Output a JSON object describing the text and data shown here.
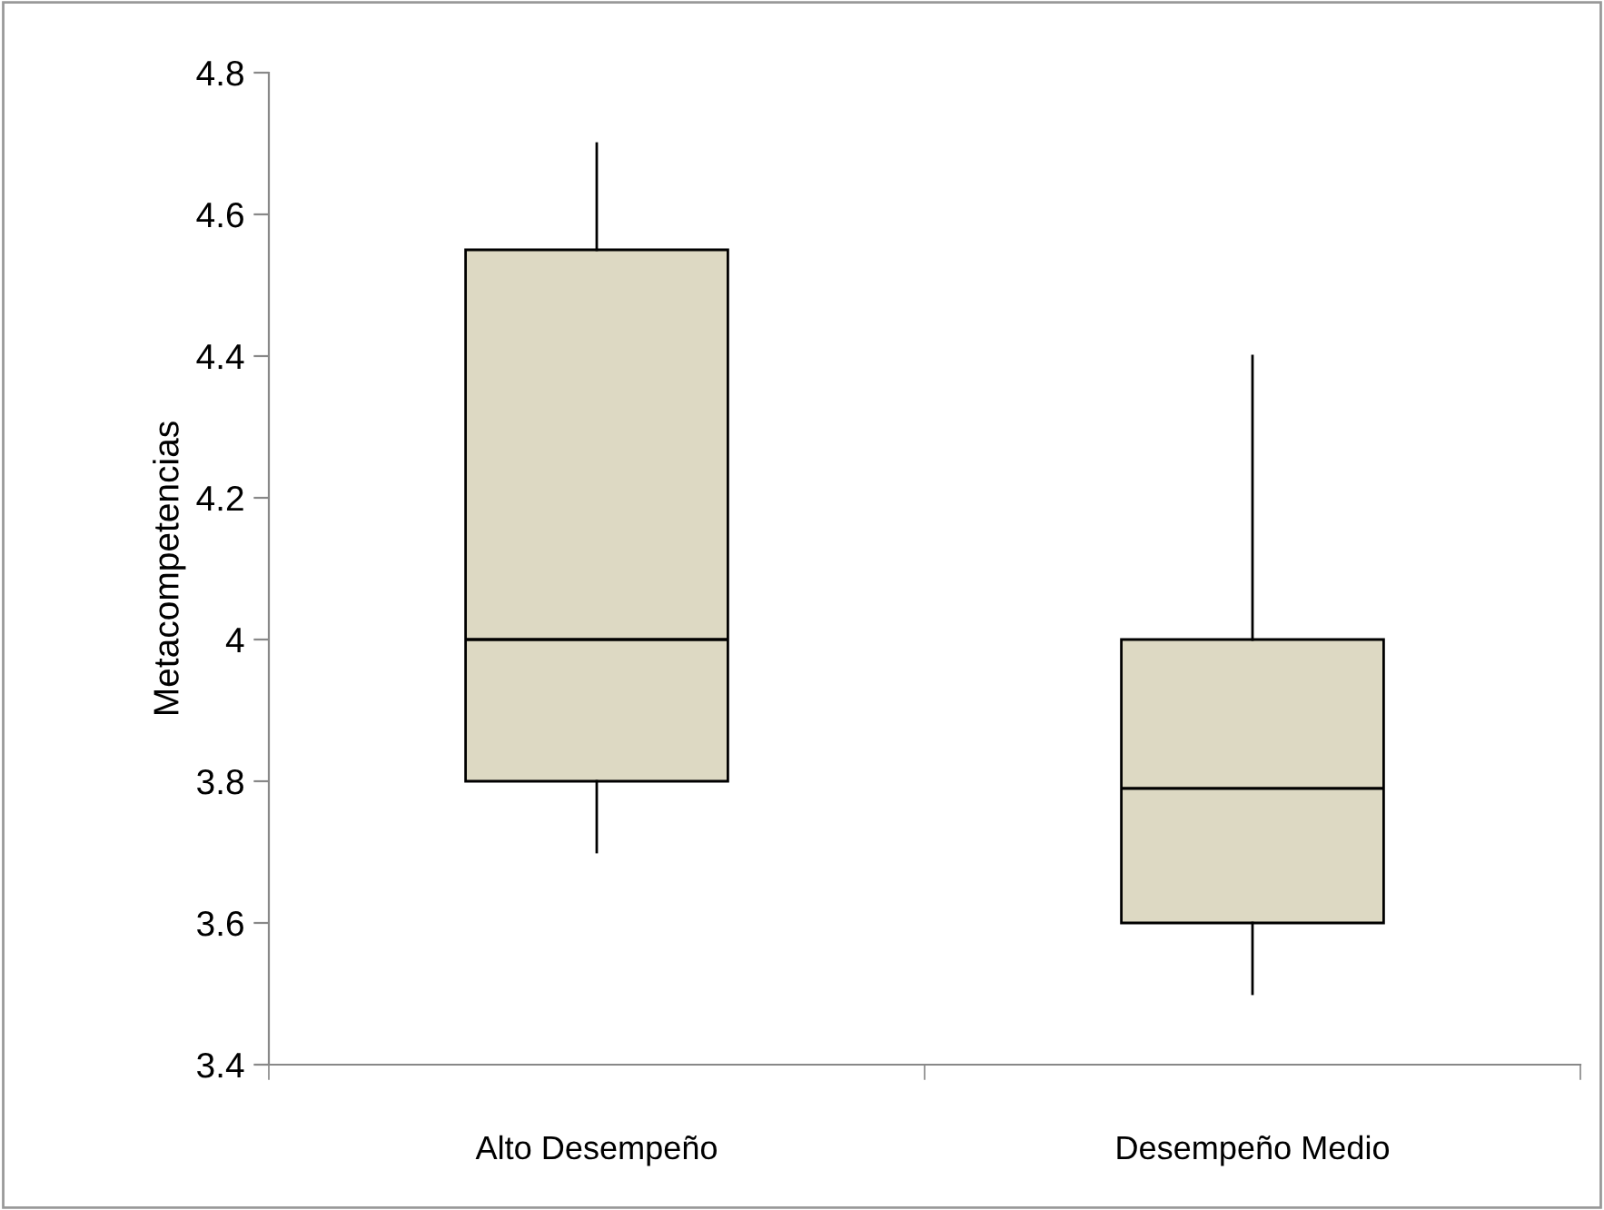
{
  "chart_data": {
    "type": "box",
    "ylabel": "Metacompetencias",
    "categories": [
      "Alto Desempeño",
      "Desempeño Medio"
    ],
    "boxes": [
      {
        "low": 3.7,
        "q1": 3.8,
        "median": 4.0,
        "q3": 4.55,
        "high": 4.7
      },
      {
        "low": 3.5,
        "q1": 3.6,
        "median": 3.79,
        "q3": 4.0,
        "high": 4.4
      }
    ],
    "color": "#ddd9c3",
    "ylim": [
      3.4,
      4.8
    ],
    "yticks": [
      3.4,
      3.6,
      3.8,
      4,
      4.2,
      4.4,
      4.6,
      4.8
    ],
    "grid": false,
    "legend": false
  }
}
